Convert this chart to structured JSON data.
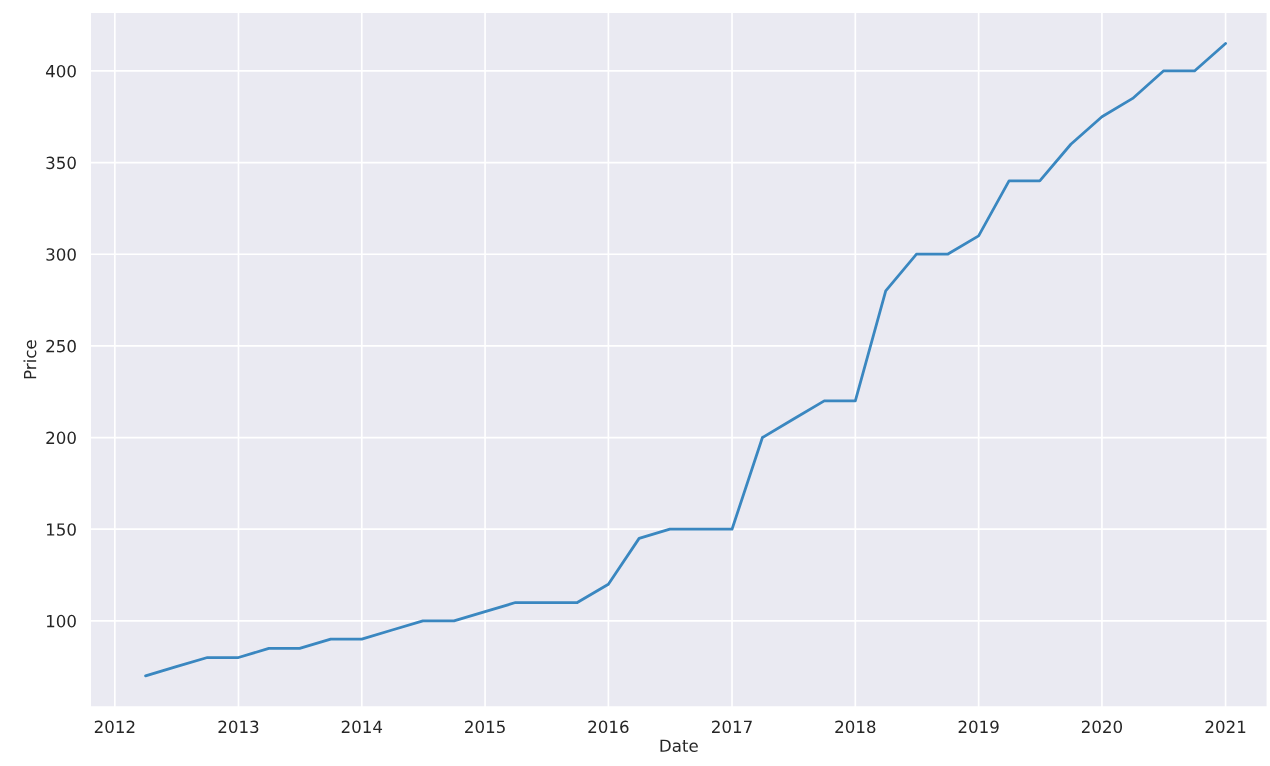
{
  "chart_data": {
    "type": "line",
    "xlabel": "Date",
    "ylabel": "Price",
    "x": [
      "2012-04",
      "2012-07",
      "2012-10",
      "2013-01",
      "2013-04",
      "2013-07",
      "2013-10",
      "2014-01",
      "2014-04",
      "2014-07",
      "2014-10",
      "2015-01",
      "2015-04",
      "2015-07",
      "2015-10",
      "2016-01",
      "2016-04",
      "2016-07",
      "2016-10",
      "2017-01",
      "2017-04",
      "2017-07",
      "2017-10",
      "2018-01",
      "2018-04",
      "2018-07",
      "2018-10",
      "2019-01",
      "2019-04",
      "2019-07",
      "2019-10",
      "2020-01",
      "2020-04",
      "2020-07",
      "2020-10",
      "2021-01"
    ],
    "series": [
      {
        "color": "#3a87c0",
        "values": [
          70,
          75,
          80,
          80,
          85,
          85,
          90,
          90,
          95,
          100,
          100,
          105,
          110,
          110,
          110,
          120,
          145,
          150,
          150,
          150,
          200,
          210,
          220,
          220,
          280,
          300,
          300,
          310,
          340,
          340,
          360,
          375,
          385,
          400,
          400,
          415
        ]
      }
    ],
    "xlim": [
      "2011-10-20",
      "2021-05-05"
    ],
    "xticks": [
      "2012",
      "2013",
      "2014",
      "2015",
      "2016",
      "2017",
      "2018",
      "2019",
      "2020",
      "2021"
    ],
    "ylim": [
      53,
      432
    ],
    "yticks": [
      100,
      150,
      200,
      250,
      300,
      350,
      400
    ],
    "grid": true
  }
}
